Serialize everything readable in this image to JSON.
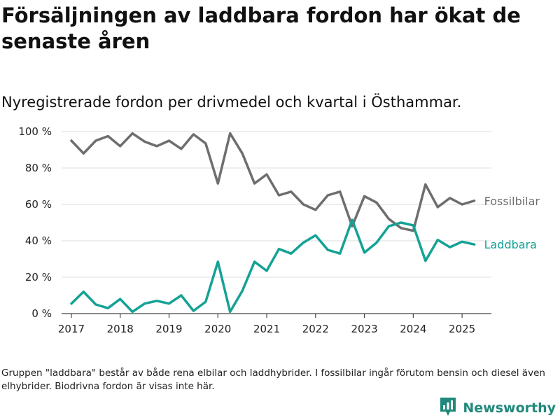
{
  "header": {
    "title": "Försäljningen av laddbara fordon har ökat de senaste åren",
    "subtitle": "Nyregistrerade fordon per drivmedel och kvartal i Östhammar."
  },
  "footer": {
    "note": "Gruppen \"laddbara\" består av både rena elbilar och laddhybrider. I fossilbilar ingår förutom bensin och diesel även elhybrider. Biodrivna fordon är visas inte här.",
    "brand": "Newsworthy",
    "brand_icon": "newsworthy-logo-icon",
    "brand_color": "#20897b"
  },
  "chart_data": {
    "type": "line",
    "x": [
      2017.0,
      2017.25,
      2017.5,
      2017.75,
      2018.0,
      2018.25,
      2018.5,
      2018.75,
      2019.0,
      2019.25,
      2019.5,
      2019.75,
      2020.0,
      2020.25,
      2020.5,
      2020.75,
      2021.0,
      2021.25,
      2021.5,
      2021.75,
      2022.0,
      2022.25,
      2022.5,
      2022.75,
      2023.0,
      2023.25,
      2023.5,
      2023.75,
      2024.0,
      2024.25,
      2024.5,
      2024.75,
      2025.0,
      2025.25
    ],
    "series": [
      {
        "name": "Fossilbilar",
        "color": "#6e6e6e",
        "values": [
          95,
          88,
          95,
          97.5,
          92,
          99,
          94.5,
          92,
          95,
          90.5,
          98.5,
          93.5,
          71.5,
          99,
          88,
          71.5,
          76.5,
          65,
          67,
          60,
          57,
          65,
          67,
          48,
          64.5,
          61,
          52,
          47,
          45.5,
          71,
          58.5,
          63.5,
          60,
          62
        ]
      },
      {
        "name": "Laddbara",
        "color": "#14a295",
        "values": [
          5.5,
          12,
          5,
          3,
          8,
          1,
          5.5,
          7,
          5.5,
          10,
          1.5,
          6.5,
          28.5,
          1,
          12.5,
          28.5,
          23.5,
          35.5,
          33,
          39,
          43,
          35,
          33,
          51.5,
          33.5,
          39,
          48,
          50,
          48.5,
          29,
          40.5,
          36.5,
          39.5,
          38
        ]
      }
    ],
    "x_ticks": [
      2017,
      2018,
      2019,
      2020,
      2021,
      2022,
      2023,
      2024,
      2025
    ],
    "x_tick_labels": [
      "2017",
      "2018",
      "2019",
      "2020",
      "2021",
      "2022",
      "2023",
      "2024",
      "2025"
    ],
    "y_ticks": [
      0,
      20,
      40,
      60,
      80,
      100
    ],
    "y_tick_labels": [
      "0 %",
      "20 %",
      "40 %",
      "60 %",
      "80 %",
      "100 %"
    ],
    "xlim": [
      2016.8,
      2025.6
    ],
    "ylim": [
      0,
      100
    ],
    "xlabel": "",
    "ylabel": "",
    "grid": true,
    "legend": "direct labels at line ends"
  }
}
